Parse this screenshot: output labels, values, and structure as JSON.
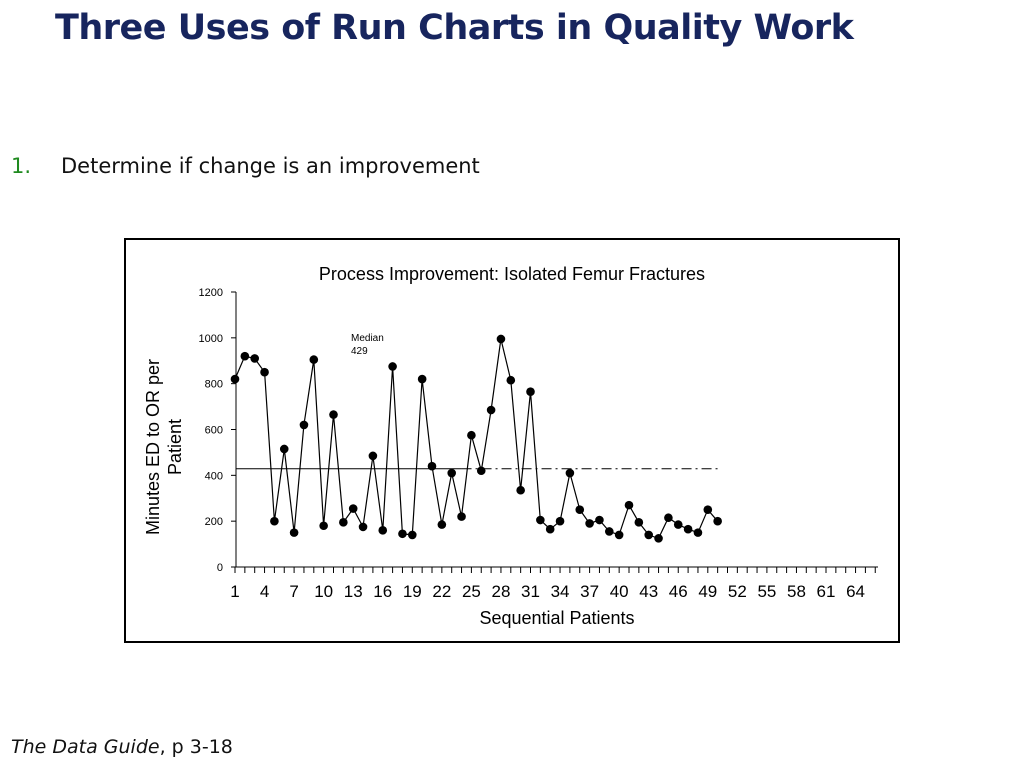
{
  "slide": {
    "title": "Three Uses of Run Charts in Quality Work",
    "bullet_number": "1.",
    "bullet_text": "Determine if change is an improvement",
    "footer_italic": "The Data Guide",
    "footer_rest": ", p 3-18"
  },
  "chart_data": {
    "type": "line",
    "title": "Process Improvement: Isolated Femur Fractures",
    "xlabel": "Sequential Patients",
    "ylabel_lines": [
      "Minutes ED to OR per",
      "Patient"
    ],
    "ylim": [
      0,
      1200
    ],
    "y_ticks": [
      "0",
      "200",
      "400",
      "600",
      "800",
      "1000",
      "1200"
    ],
    "y_tick_values": [
      0,
      200,
      400,
      600,
      800,
      1000,
      1200
    ],
    "xlim": [
      1,
      66
    ],
    "x_ticks": [
      "1",
      "4",
      "7",
      "10",
      "13",
      "16",
      "19",
      "22",
      "25",
      "28",
      "31",
      "34",
      "37",
      "40",
      "43",
      "46",
      "49",
      "52",
      "55",
      "58",
      "61",
      "64"
    ],
    "x_tick_values": [
      1,
      4,
      7,
      10,
      13,
      16,
      19,
      22,
      25,
      28,
      31,
      34,
      37,
      40,
      43,
      46,
      49,
      52,
      55,
      58,
      61,
      64
    ],
    "median": {
      "value": 429,
      "label_line1": "Median",
      "label_line2": "429",
      "solid_until": 24,
      "dashed_until": 50
    },
    "series": [
      {
        "values": [
          820,
          920,
          910,
          850,
          200,
          515,
          150,
          620,
          905,
          180,
          665,
          195,
          255,
          175,
          485,
          160,
          875,
          145,
          140,
          820,
          440,
          185,
          410,
          220,
          575,
          420,
          685,
          995,
          815,
          335,
          765,
          205,
          165,
          200,
          410,
          250,
          190,
          205,
          155,
          140,
          270,
          195,
          140,
          125,
          215,
          185,
          165,
          150,
          250,
          200
        ]
      }
    ],
    "line_color": "#000000",
    "marker_color": "#000000",
    "grid": false
  }
}
